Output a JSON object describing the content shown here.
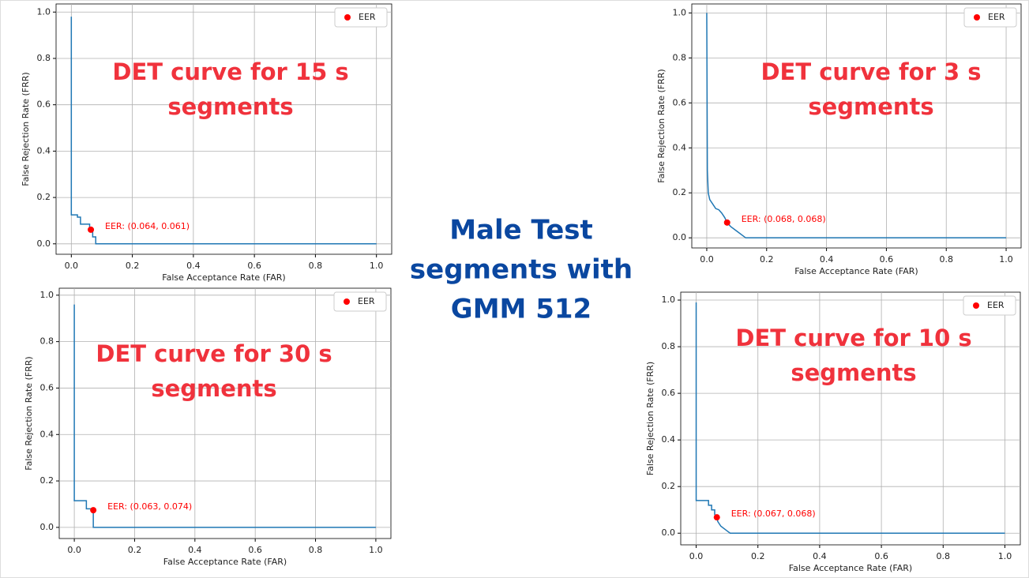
{
  "slide_title": [
    "Male Test",
    "segments with",
    "GMM 512"
  ],
  "chart_data": [
    {
      "type": "line",
      "overlay_title": [
        "DET curve for 15 s",
        "segments"
      ],
      "xlabel": "False Acceptance Rate (FAR)",
      "ylabel": "False Rejection Rate (FRR)",
      "xlim": [
        -0.05,
        1.05
      ],
      "ylim": [
        -0.045,
        1.035
      ],
      "xticks": [
        {
          "value": 0,
          "label": "0.0"
        },
        {
          "value": 0.2,
          "label": "0.2"
        },
        {
          "value": 0.4,
          "label": "0.4"
        },
        {
          "value": 0.6,
          "label": "0.6"
        },
        {
          "value": 0.8,
          "label": "0.8"
        },
        {
          "value": 1,
          "label": "1.0"
        }
      ],
      "yticks": [
        {
          "value": 0,
          "label": "0.0"
        },
        {
          "value": 0.2,
          "label": "0.2"
        },
        {
          "value": 0.4,
          "label": "0.4"
        },
        {
          "value": 0.6,
          "label": "0.6"
        },
        {
          "value": 0.8,
          "label": "0.8"
        },
        {
          "value": 1,
          "label": "1.0"
        }
      ],
      "grid": true,
      "legend": "upper right",
      "series": [
        {
          "color": "#1f77b4",
          "x": [
            0,
            0,
            0.02,
            0.02,
            0.03,
            0.03,
            0.06,
            0.06,
            0.07,
            0.07,
            0.08,
            0.08,
            1
          ],
          "values": [
            0.98,
            0.125,
            0.125,
            0.115,
            0.115,
            0.085,
            0.085,
            0.061,
            0.061,
            0.03,
            0.03,
            0,
            0
          ]
        },
        {
          "name": "EER",
          "color": "#ff0000",
          "x": [
            0.064
          ],
          "values": [
            0.061
          ],
          "value_labels": [
            "EER: (0.064, 0.061)"
          ]
        }
      ]
    },
    {
      "type": "line",
      "overlay_title": [
        "DET curve for 3 s",
        "segments"
      ],
      "xlabel": "False Acceptance Rate (FAR)",
      "ylabel": "False Rejection Rate (FRR)",
      "xlim": [
        -0.05,
        1.05
      ],
      "ylim": [
        -0.045,
        1.04
      ],
      "xticks": [
        {
          "value": 0,
          "label": "0.0"
        },
        {
          "value": 0.2,
          "label": "0.2"
        },
        {
          "value": 0.4,
          "label": "0.4"
        },
        {
          "value": 0.6,
          "label": "0.6"
        },
        {
          "value": 0.8,
          "label": "0.8"
        },
        {
          "value": 1,
          "label": "1.0"
        }
      ],
      "yticks": [
        {
          "value": 0,
          "label": "0.0"
        },
        {
          "value": 0.2,
          "label": "0.2"
        },
        {
          "value": 0.4,
          "label": "0.4"
        },
        {
          "value": 0.6,
          "label": "0.6"
        },
        {
          "value": 0.8,
          "label": "0.8"
        },
        {
          "value": 1,
          "label": "1.0"
        }
      ],
      "grid": true,
      "legend": "upper right",
      "series": [
        {
          "color": "#1f77b4",
          "x": [
            0,
            0.002,
            0.005,
            0.01,
            0.02,
            0.03,
            0.04,
            0.05,
            0.06,
            0.068,
            0.08,
            0.1,
            0.12,
            0.13,
            1
          ],
          "values": [
            1.0,
            0.3,
            0.2,
            0.17,
            0.15,
            0.13,
            0.125,
            0.11,
            0.09,
            0.068,
            0.05,
            0.03,
            0.01,
            0,
            0
          ]
        },
        {
          "name": "EER",
          "color": "#ff0000",
          "x": [
            0.068
          ],
          "values": [
            0.068
          ],
          "value_labels": [
            "EER: (0.068, 0.068)"
          ]
        }
      ]
    },
    {
      "type": "line",
      "overlay_title": [
        "DET curve for 30 s",
        "segments"
      ],
      "xlabel": "False Acceptance Rate (FAR)",
      "ylabel": "False Rejection Rate (FRR)",
      "xlim": [
        -0.05,
        1.05
      ],
      "ylim": [
        -0.048,
        1.03
      ],
      "xticks": [
        {
          "value": 0,
          "label": "0.0"
        },
        {
          "value": 0.2,
          "label": "0.2"
        },
        {
          "value": 0.4,
          "label": "0.4"
        },
        {
          "value": 0.6,
          "label": "0.6"
        },
        {
          "value": 0.8,
          "label": "0.8"
        },
        {
          "value": 1,
          "label": "1.0"
        }
      ],
      "yticks": [
        {
          "value": 0,
          "label": "0.0"
        },
        {
          "value": 0.2,
          "label": "0.2"
        },
        {
          "value": 0.4,
          "label": "0.4"
        },
        {
          "value": 0.6,
          "label": "0.6"
        },
        {
          "value": 0.8,
          "label": "0.8"
        },
        {
          "value": 1,
          "label": "1.0"
        }
      ],
      "grid": true,
      "legend": "upper right",
      "series": [
        {
          "color": "#1f77b4",
          "x": [
            0,
            0,
            0.04,
            0.04,
            0.063,
            0.063,
            1
          ],
          "values": [
            0.96,
            0.115,
            0.115,
            0.08,
            0.08,
            0,
            0
          ]
        },
        {
          "name": "EER",
          "color": "#ff0000",
          "x": [
            0.063
          ],
          "values": [
            0.074
          ],
          "value_labels": [
            "EER: (0.063, 0.074)"
          ]
        }
      ]
    },
    {
      "type": "line",
      "overlay_title": [
        "DET curve for 10 s",
        "segments"
      ],
      "xlabel": "False Acceptance Rate (FAR)",
      "ylabel": "False Rejection Rate (FRR)",
      "xlim": [
        -0.05,
        1.05
      ],
      "ylim": [
        -0.05,
        1.034
      ],
      "xticks": [
        {
          "value": 0,
          "label": "0.0"
        },
        {
          "value": 0.2,
          "label": "0.2"
        },
        {
          "value": 0.4,
          "label": "0.4"
        },
        {
          "value": 0.6,
          "label": "0.6"
        },
        {
          "value": 0.8,
          "label": "0.8"
        },
        {
          "value": 1,
          "label": "1.0"
        }
      ],
      "yticks": [
        {
          "value": 0,
          "label": "0.0"
        },
        {
          "value": 0.2,
          "label": "0.2"
        },
        {
          "value": 0.4,
          "label": "0.4"
        },
        {
          "value": 0.6,
          "label": "0.6"
        },
        {
          "value": 0.8,
          "label": "0.8"
        },
        {
          "value": 1,
          "label": "1.0"
        }
      ],
      "grid": true,
      "legend": "upper right",
      "series": [
        {
          "color": "#1f77b4",
          "x": [
            0,
            0,
            0.04,
            0.04,
            0.05,
            0.05,
            0.06,
            0.06,
            0.067,
            0.07,
            0.08,
            0.1,
            0.11,
            1
          ],
          "values": [
            0.99,
            0.14,
            0.14,
            0.12,
            0.12,
            0.1,
            0.1,
            0.08,
            0.068,
            0.05,
            0.03,
            0.01,
            0,
            0
          ]
        },
        {
          "name": "EER",
          "color": "#ff0000",
          "x": [
            0.067
          ],
          "values": [
            0.068
          ],
          "value_labels": [
            "EER: (0.067, 0.068)"
          ]
        }
      ]
    }
  ]
}
